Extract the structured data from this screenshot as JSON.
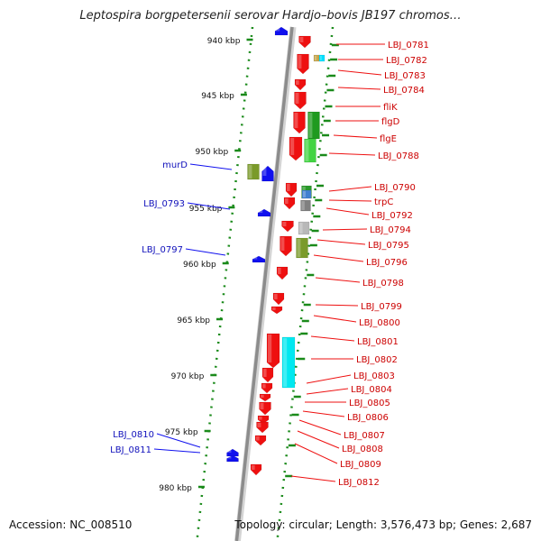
{
  "title": "Leptospira borgpetersenii serovar Hardjo–bovis JB197 chromos…",
  "footer": {
    "accession": "Accession: NC_008510",
    "topology": "Topology: circular; Length: 3,576,473 bp; Genes: 2,687"
  },
  "colors": {
    "backbone": "#8c8c8c",
    "ruler": "#1a8a1a",
    "forward_gene": "#1010ee",
    "reverse_gene": "#ee1010",
    "label_forward": "#1010bb",
    "label_reverse": "#cc0000",
    "leader_forward": "#1010ee",
    "leader_reverse": "#ee1010"
  },
  "chart_data": {
    "type": "genome_map",
    "kbp_ticks": [
      "940 kbp",
      "945 kbp",
      "950 kbp",
      "955 kbp",
      "960 kbp",
      "965 kbp",
      "970 kbp",
      "975 kbp",
      "980 kbp"
    ],
    "forward_labels": [
      "murD",
      "LBJ_0793",
      "LBJ_0797",
      "LBJ_0810",
      "LBJ_0811"
    ],
    "reverse_labels": [
      "LBJ_0781",
      "LBJ_0782",
      "LBJ_0783",
      "LBJ_0784",
      "fliK",
      "flgD",
      "flgE",
      "LBJ_0788",
      "LBJ_0790",
      "trpC",
      "LBJ_0792",
      "LBJ_0794",
      "LBJ_0795",
      "LBJ_0796",
      "LBJ_0798",
      "LBJ_0799",
      "LBJ_0800",
      "LBJ_0801",
      "LBJ_0802",
      "LBJ_0803",
      "LBJ_0804",
      "LBJ_0805",
      "LBJ_0806",
      "LBJ_0807",
      "LBJ_0808",
      "LBJ_0809",
      "LBJ_0812"
    ]
  }
}
